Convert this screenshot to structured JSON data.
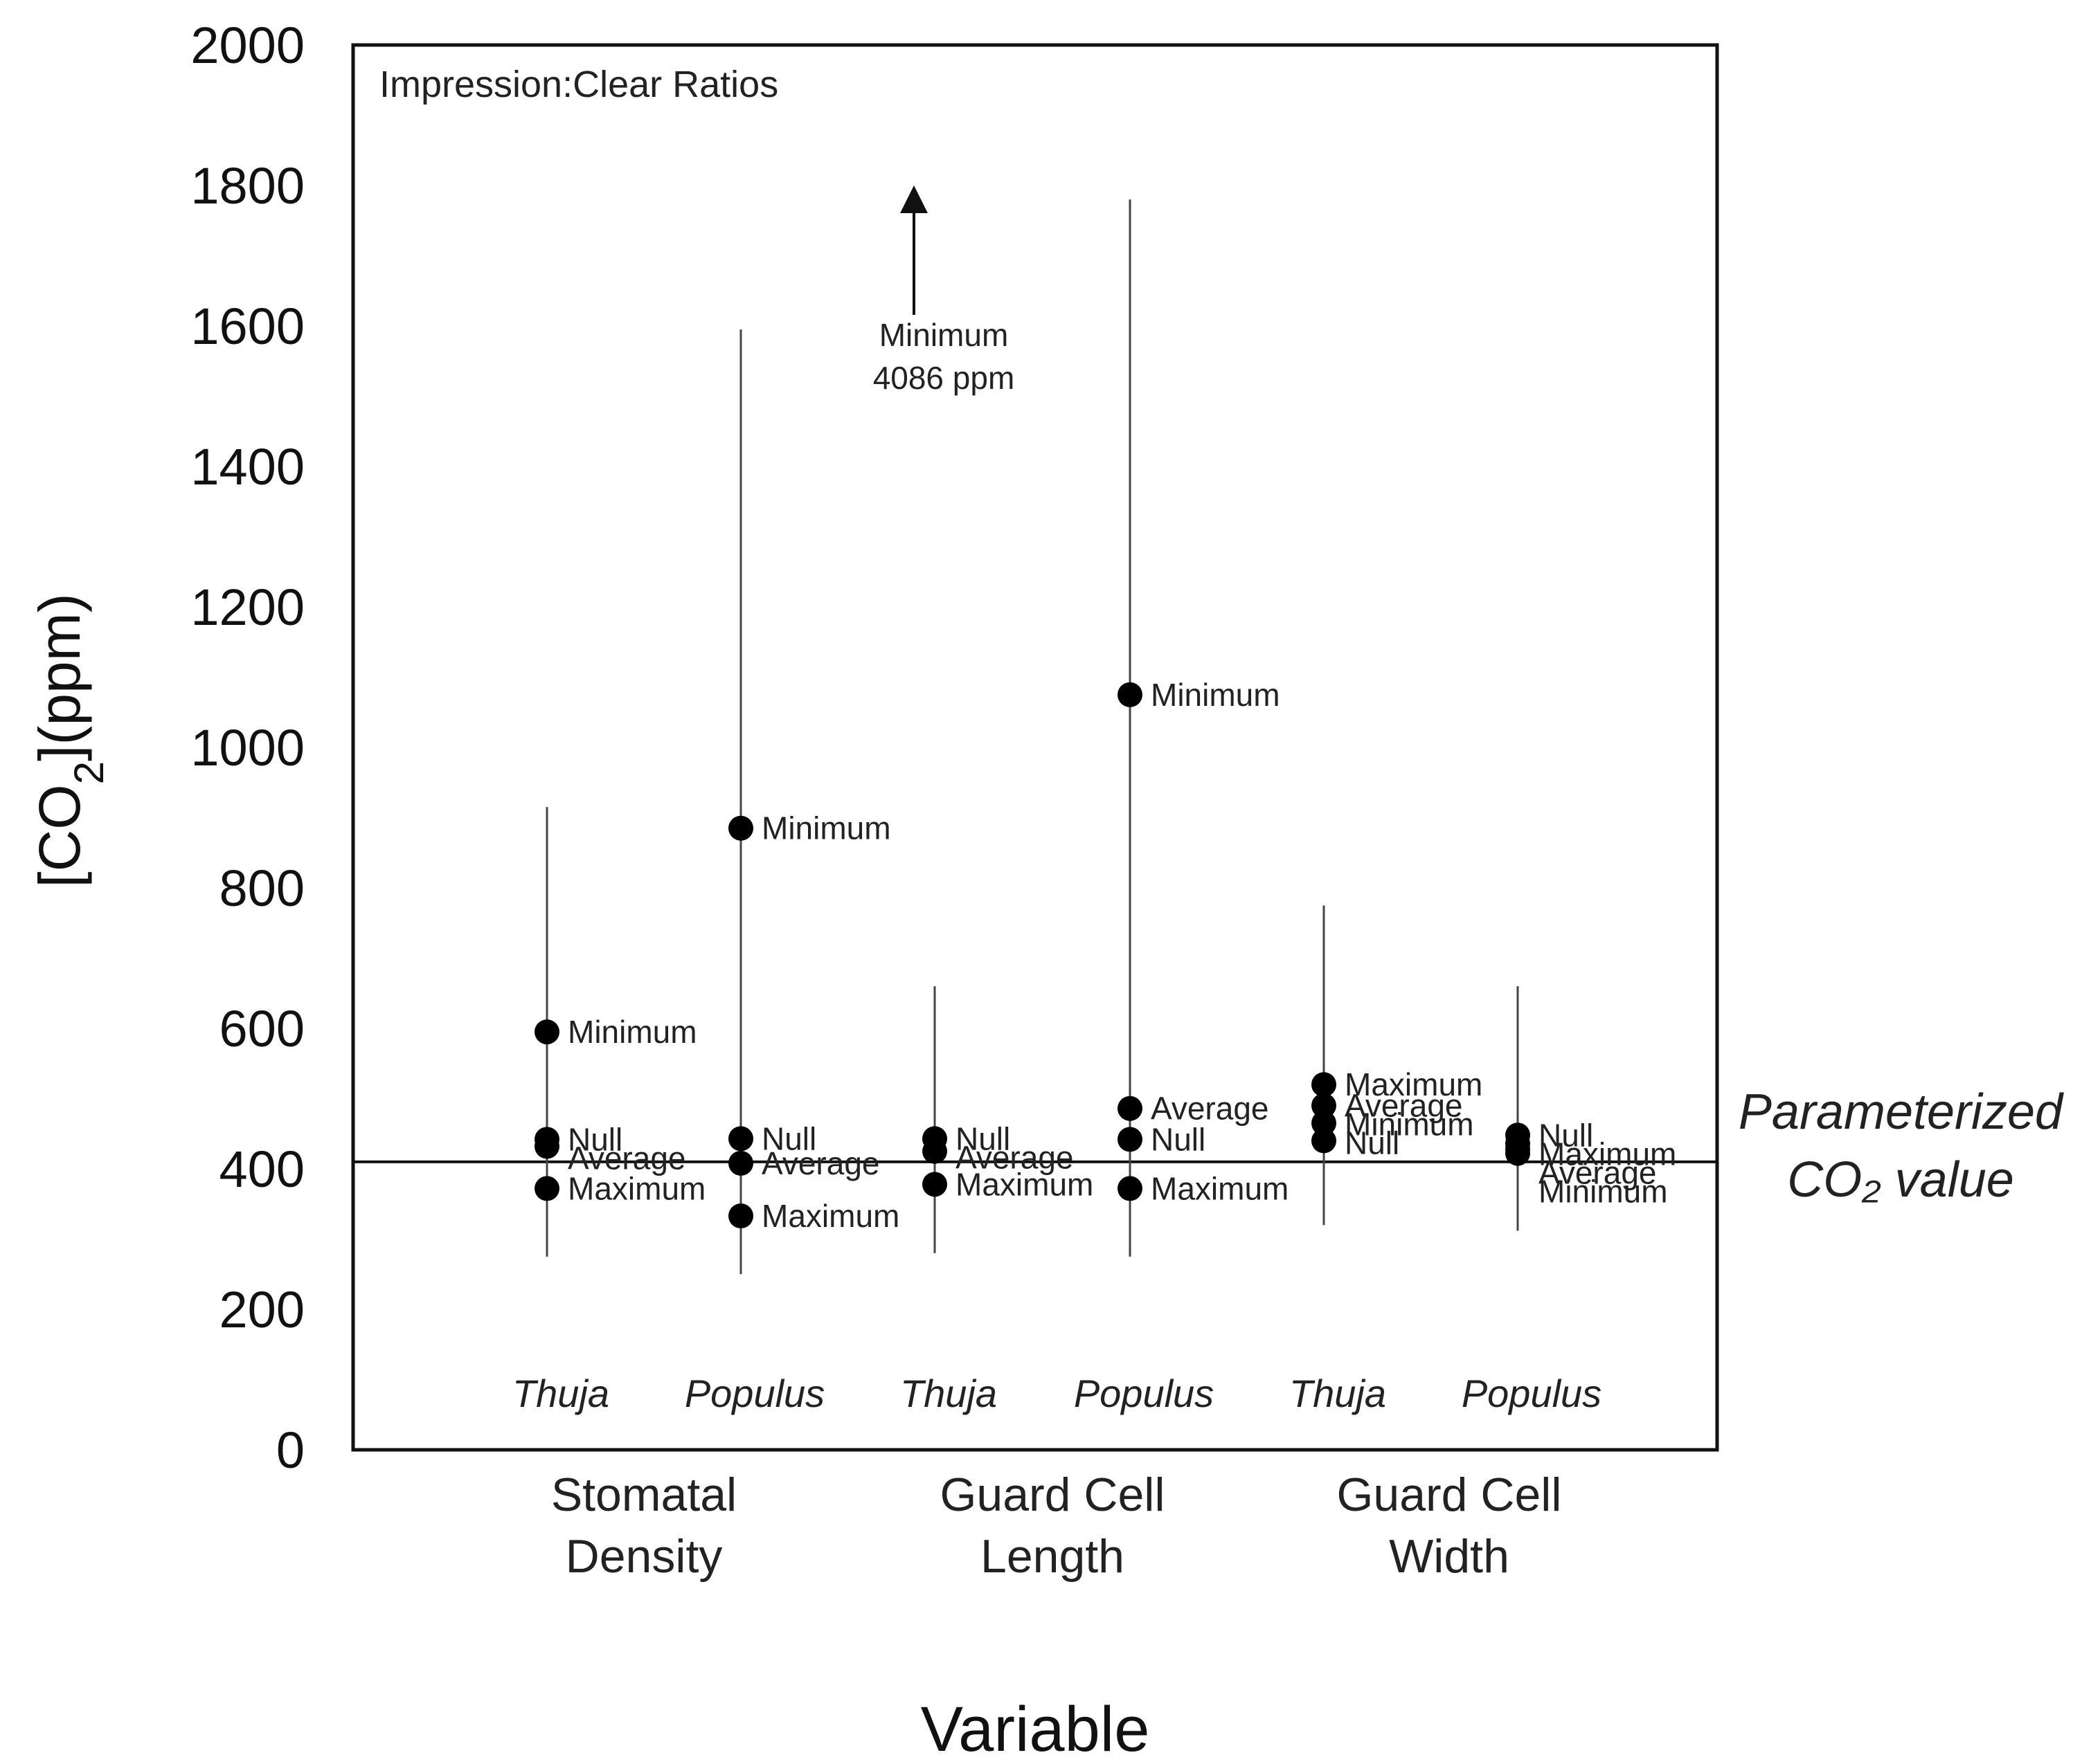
{
  "chart_data": {
    "type": "scatter",
    "title": "Impression:Clear Ratios",
    "xlabel": "Variable",
    "ylabel": "[CO2](ppm)",
    "ylim": [
      0,
      2000
    ],
    "yticks": [
      0,
      200,
      400,
      600,
      800,
      1000,
      1200,
      1400,
      1600,
      1800,
      2000
    ],
    "reference_line": {
      "value": 410,
      "label_line1": "Parameterized",
      "label_line2": "CO₂ value"
    },
    "variables": [
      {
        "line1": "Stomatal",
        "line2": "Density"
      },
      {
        "line1": "Guard Cell",
        "line2": "Length"
      },
      {
        "line1": "Guard Cell",
        "line2": "Width"
      }
    ],
    "series": [
      {
        "variable_index": 0,
        "taxon": "Thuja",
        "range": [
          275,
          915
        ],
        "points": [
          {
            "name": "Minimum",
            "value": 595
          },
          {
            "name": "Null",
            "value": 442
          },
          {
            "name": "Average",
            "value": 432
          },
          {
            "name": "Maximum",
            "value": 372
          }
        ]
      },
      {
        "variable_index": 0,
        "taxon": "Populus",
        "range": [
          250,
          1595
        ],
        "points": [
          {
            "name": "Minimum",
            "value": 885
          },
          {
            "name": "Null",
            "value": 443
          },
          {
            "name": "Average",
            "value": 408
          },
          {
            "name": "Maximum",
            "value": 333
          }
        ]
      },
      {
        "variable_index": 1,
        "taxon": "Thuja",
        "range": [
          280,
          660
        ],
        "points": [
          {
            "name": "Null",
            "value": 443
          },
          {
            "name": "Average",
            "value": 425
          },
          {
            "name": "Maximum",
            "value": 378
          }
        ],
        "offscale": {
          "label_line1": "Minimum",
          "label_line2": "4086 ppm",
          "value": 4086
        }
      },
      {
        "variable_index": 1,
        "taxon": "Populus",
        "range": [
          275,
          1780
        ],
        "points": [
          {
            "name": "Minimum",
            "value": 1075
          },
          {
            "name": "Average",
            "value": 486
          },
          {
            "name": "Null",
            "value": 442
          },
          {
            "name": "Maximum",
            "value": 372
          }
        ]
      },
      {
        "variable_index": 2,
        "taxon": "Thuja",
        "range": [
          320,
          775
        ],
        "points": [
          {
            "name": "Maximum",
            "value": 520
          },
          {
            "name": "Average",
            "value": 490
          },
          {
            "name": "Minimum",
            "value": 465
          },
          {
            "name": "Null",
            "value": 440
          }
        ]
      },
      {
        "variable_index": 2,
        "taxon": "Populus",
        "range": [
          312,
          660
        ],
        "points": [
          {
            "name": "Null",
            "value": 448
          },
          {
            "name": "Maximum",
            "value": 436
          },
          {
            "name": "Average",
            "value": 428
          },
          {
            "name": "Minimum",
            "value": 422
          }
        ]
      }
    ]
  }
}
